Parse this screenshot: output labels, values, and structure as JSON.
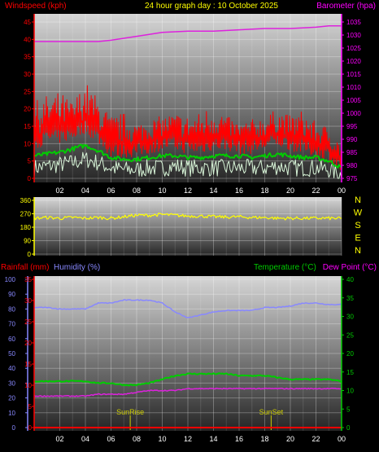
{
  "header": {
    "windspeed_label": "Windspeed (kph)",
    "title": "24 hour graph day : 10 October 2025",
    "barometer_label": "Barometer (hpa)"
  },
  "lower_header": {
    "rainfall_label": "Rainfall (mm)",
    "humidity_label": "Humidity (%)",
    "temperature_label": "Temperature (°C)",
    "dewpoint_label": "Dew Point (°C)"
  },
  "compass": [
    "N",
    "W",
    "S",
    "E",
    "N"
  ],
  "colors": {
    "wind": "#ff0000",
    "wind_avg": "#00cc00",
    "wind_gust_low": "#d8f5d8",
    "barometer": "#dd22dd",
    "direction": "#ffff00",
    "rainfall": "#ff0000",
    "humidity": "#8888ff",
    "temperature": "#00cc00",
    "dewpoint": "#dd22dd",
    "sun_marker": "#cccc00",
    "left_axis": "#ff0000",
    "right_axis_top": "#ff00ff",
    "right_axis_bottom": "#00cc00"
  },
  "x_ticks": [
    "02",
    "04",
    "06",
    "08",
    "10",
    "12",
    "14",
    "16",
    "18",
    "20",
    "22",
    "00"
  ],
  "chart_data": [
    {
      "type": "line",
      "name": "wind-barometer",
      "x_start_hour": 0,
      "x_end_hour": 24,
      "left_axis": {
        "label": "Windspeed (kph)",
        "ticks": [
          0,
          5,
          10,
          15,
          20,
          25,
          30,
          35,
          40,
          45
        ],
        "range": [
          0,
          45
        ]
      },
      "right_axis": {
        "label": "Barometer (hpa)",
        "ticks": [
          975,
          980,
          985,
          990,
          995,
          1000,
          1005,
          1010,
          1015,
          1020,
          1025,
          1030,
          1035
        ],
        "range": [
          975,
          1035
        ]
      },
      "series": [
        {
          "name": "Barometer",
          "axis": "right",
          "x": [
            0,
            2,
            4,
            5,
            6,
            8,
            10,
            12,
            14,
            16,
            18,
            20,
            22,
            23,
            24
          ],
          "y": [
            1027.5,
            1027.5,
            1027.5,
            1027.5,
            1028,
            1029.5,
            1031,
            1031.5,
            1031.5,
            1032,
            1032.5,
            1032.5,
            1033,
            1033.5,
            1033.5
          ]
        },
        {
          "name": "Windspeed",
          "axis": "left",
          "x": [
            0,
            1,
            2,
            3,
            4,
            5,
            6,
            7,
            8,
            9,
            10,
            11,
            12,
            13,
            14,
            15,
            16,
            17,
            18,
            19,
            20,
            21,
            22,
            23,
            24
          ],
          "y": [
            12,
            14,
            14,
            15,
            17,
            14,
            10,
            10,
            10,
            11,
            12,
            12,
            11,
            11,
            12,
            12,
            11,
            11,
            12,
            13,
            12,
            11,
            10,
            9,
            5
          ],
          "y_peak": [
            22,
            24,
            25,
            22,
            28,
            23,
            18,
            19,
            16,
            17,
            18,
            19,
            18,
            19,
            22,
            18,
            16,
            17,
            18,
            20,
            18,
            20,
            16,
            15,
            10
          ]
        },
        {
          "name": "Average",
          "axis": "left",
          "x": [
            0,
            1,
            2,
            3,
            4,
            5,
            6,
            7,
            8,
            9,
            10,
            11,
            12,
            13,
            14,
            15,
            16,
            17,
            18,
            19,
            20,
            21,
            22,
            23,
            24
          ],
          "y": [
            6.5,
            7,
            7.5,
            8.5,
            9.5,
            8,
            6,
            5.5,
            5.5,
            6,
            6.5,
            6.5,
            6,
            6,
            6.5,
            6.5,
            6.5,
            6,
            6.5,
            7,
            6.5,
            6,
            6,
            5,
            3
          ]
        },
        {
          "name": "Lull",
          "axis": "left",
          "x": [
            0,
            1,
            2,
            3,
            4,
            5,
            6,
            7,
            8,
            9,
            10,
            11,
            12,
            13,
            14,
            15,
            16,
            17,
            18,
            19,
            20,
            21,
            22,
            23,
            24
          ],
          "y": [
            3,
            3.5,
            4,
            4.5,
            5.5,
            4.5,
            3,
            2.5,
            2.5,
            3,
            3,
            3.5,
            3,
            3,
            3,
            3,
            3,
            3,
            3,
            3.5,
            3,
            3,
            3,
            2.5,
            1
          ]
        }
      ]
    },
    {
      "type": "line",
      "name": "wind-direction",
      "x_start_hour": 0,
      "x_end_hour": 24,
      "left_axis": {
        "ticks": [
          0,
          90,
          180,
          270,
          360
        ],
        "range": [
          0,
          360
        ]
      },
      "series": [
        {
          "name": "Direction",
          "x": [
            0,
            1,
            2,
            3,
            4,
            5,
            6,
            7,
            8,
            9,
            10,
            11,
            12,
            13,
            14,
            15,
            16,
            17,
            18,
            19,
            20,
            21,
            22,
            23,
            24
          ],
          "y": [
            240,
            245,
            240,
            245,
            240,
            245,
            240,
            250,
            260,
            260,
            265,
            260,
            255,
            255,
            250,
            248,
            250,
            245,
            245,
            240,
            240,
            240,
            240,
            240,
            238
          ]
        }
      ]
    },
    {
      "type": "line",
      "name": "rain-humidity-temperature",
      "x_start_hour": 0,
      "x_end_hour": 24,
      "axis_rain": {
        "label": "Rainfall (mm)",
        "ticks": [
          0,
          5,
          10,
          15,
          20,
          25,
          30,
          35
        ],
        "range": [
          0,
          35
        ]
      },
      "axis_humidity": {
        "label": "Humidity (%)",
        "ticks": [
          0,
          10,
          20,
          30,
          40,
          50,
          60,
          70,
          80,
          90,
          100
        ],
        "range": [
          0,
          100
        ]
      },
      "axis_temperature": {
        "label": "Temperature (°C)",
        "ticks": [
          0,
          5,
          10,
          15,
          20,
          25,
          30,
          35,
          40
        ],
        "range": [
          0,
          40
        ]
      },
      "annotations": [
        {
          "label": "SunRise",
          "hour": 7.5
        },
        {
          "label": "SunSet",
          "hour": 18.5
        }
      ],
      "series": [
        {
          "name": "Humidity",
          "axis": "humidity",
          "x": [
            0,
            1,
            2,
            3,
            4,
            5,
            6,
            7,
            8,
            9,
            10,
            11,
            12,
            13,
            14,
            15,
            16,
            17,
            18,
            19,
            20,
            21,
            22,
            23,
            24
          ],
          "y": [
            81,
            81,
            80,
            80,
            80,
            84,
            84,
            86,
            86,
            86,
            84,
            78,
            74,
            76,
            78,
            79,
            79,
            79,
            81,
            81,
            82,
            84,
            84,
            83,
            83
          ]
        },
        {
          "name": "Temperature",
          "axis": "temperature",
          "x": [
            0,
            1,
            2,
            3,
            4,
            5,
            6,
            7,
            8,
            9,
            10,
            11,
            12,
            13,
            14,
            15,
            16,
            17,
            18,
            19,
            20,
            21,
            22,
            23,
            24
          ],
          "y": [
            12.5,
            12.5,
            12.5,
            12.5,
            12.5,
            12,
            12,
            11.5,
            11.5,
            12,
            13,
            14,
            14.5,
            14.5,
            14.5,
            14.5,
            14,
            14,
            14,
            13.5,
            13,
            13,
            13,
            13,
            12.5
          ]
        },
        {
          "name": "Dew Point",
          "axis": "temperature",
          "x": [
            0,
            1,
            2,
            3,
            4,
            5,
            6,
            7,
            8,
            9,
            10,
            11,
            12,
            13,
            14,
            15,
            16,
            17,
            18,
            19,
            20,
            21,
            22,
            23,
            24
          ],
          "y": [
            8.5,
            8.5,
            8.5,
            8.5,
            8.5,
            9,
            9,
            9,
            9.5,
            10,
            10,
            10,
            10.5,
            10.5,
            10.5,
            10.5,
            10.5,
            10.5,
            10.5,
            10.5,
            10.5,
            10.5,
            10.5,
            10.5,
            10.5
          ]
        },
        {
          "name": "Rainfall",
          "axis": "rain",
          "x": [
            0,
            24
          ],
          "y": [
            0,
            0
          ]
        }
      ]
    }
  ]
}
